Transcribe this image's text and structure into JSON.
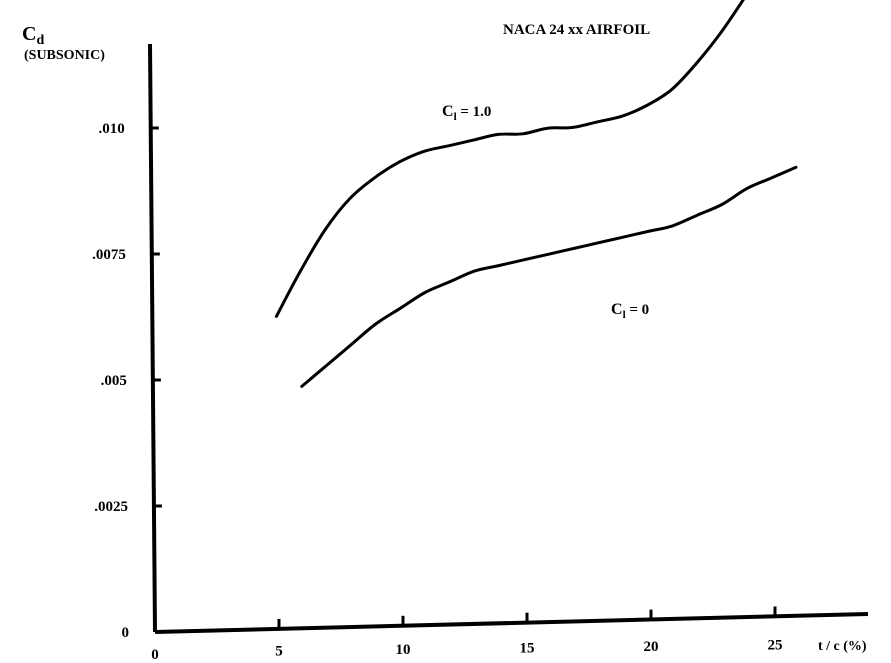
{
  "chart_data": {
    "type": "line",
    "title": "NACA 24 xx AIRFOIL",
    "ylabel_main": "C",
    "ylabel_sub": "d",
    "ylabel_qualifier": "(SUBSONIC)",
    "xlabel": "t / c (%)",
    "xlim": [
      0,
      27
    ],
    "ylim": [
      0,
      0.012
    ],
    "x_ticks": [
      0,
      5,
      10,
      15,
      20,
      25
    ],
    "x_tick_labels": [
      "0",
      "5",
      "10",
      "15",
      "20",
      "25"
    ],
    "y_ticks": [
      0,
      0.0025,
      0.005,
      0.0075,
      0.01
    ],
    "y_tick_labels": [
      "0",
      ".0025",
      ".005",
      ".0075",
      ".010"
    ],
    "grid": false,
    "series": [
      {
        "name": "C_l = 1.0",
        "label_main": "C",
        "label_sub": "l",
        "label_rest": " = 1.0",
        "x": [
          5,
          6,
          7,
          8,
          9,
          10,
          11,
          12,
          13,
          14,
          15,
          16,
          17,
          18,
          19,
          20,
          21,
          22,
          23,
          24
        ],
        "y": [
          0.0062,
          0.0071,
          0.0079,
          0.0085,
          0.0089,
          0.0092,
          0.0094,
          0.0095,
          0.0096,
          0.0097,
          0.0097,
          0.0098,
          0.0098,
          0.0099,
          0.01,
          0.0102,
          0.0105,
          0.011,
          0.0116,
          0.0123
        ]
      },
      {
        "name": "C_l = 0",
        "label_main": "C",
        "label_sub": "l",
        "label_rest": " = 0",
        "x": [
          6,
          7,
          8,
          9,
          10,
          11,
          12,
          13,
          14,
          15,
          16,
          17,
          18,
          19,
          20,
          21,
          22,
          23,
          24,
          25,
          26
        ],
        "y": [
          0.0048,
          0.0052,
          0.0056,
          0.006,
          0.0063,
          0.0066,
          0.0068,
          0.007,
          0.0071,
          0.0072,
          0.0073,
          0.0074,
          0.0075,
          0.0076,
          0.0077,
          0.0078,
          0.008,
          0.0082,
          0.0085,
          0.0087,
          0.0089
        ]
      }
    ]
  }
}
